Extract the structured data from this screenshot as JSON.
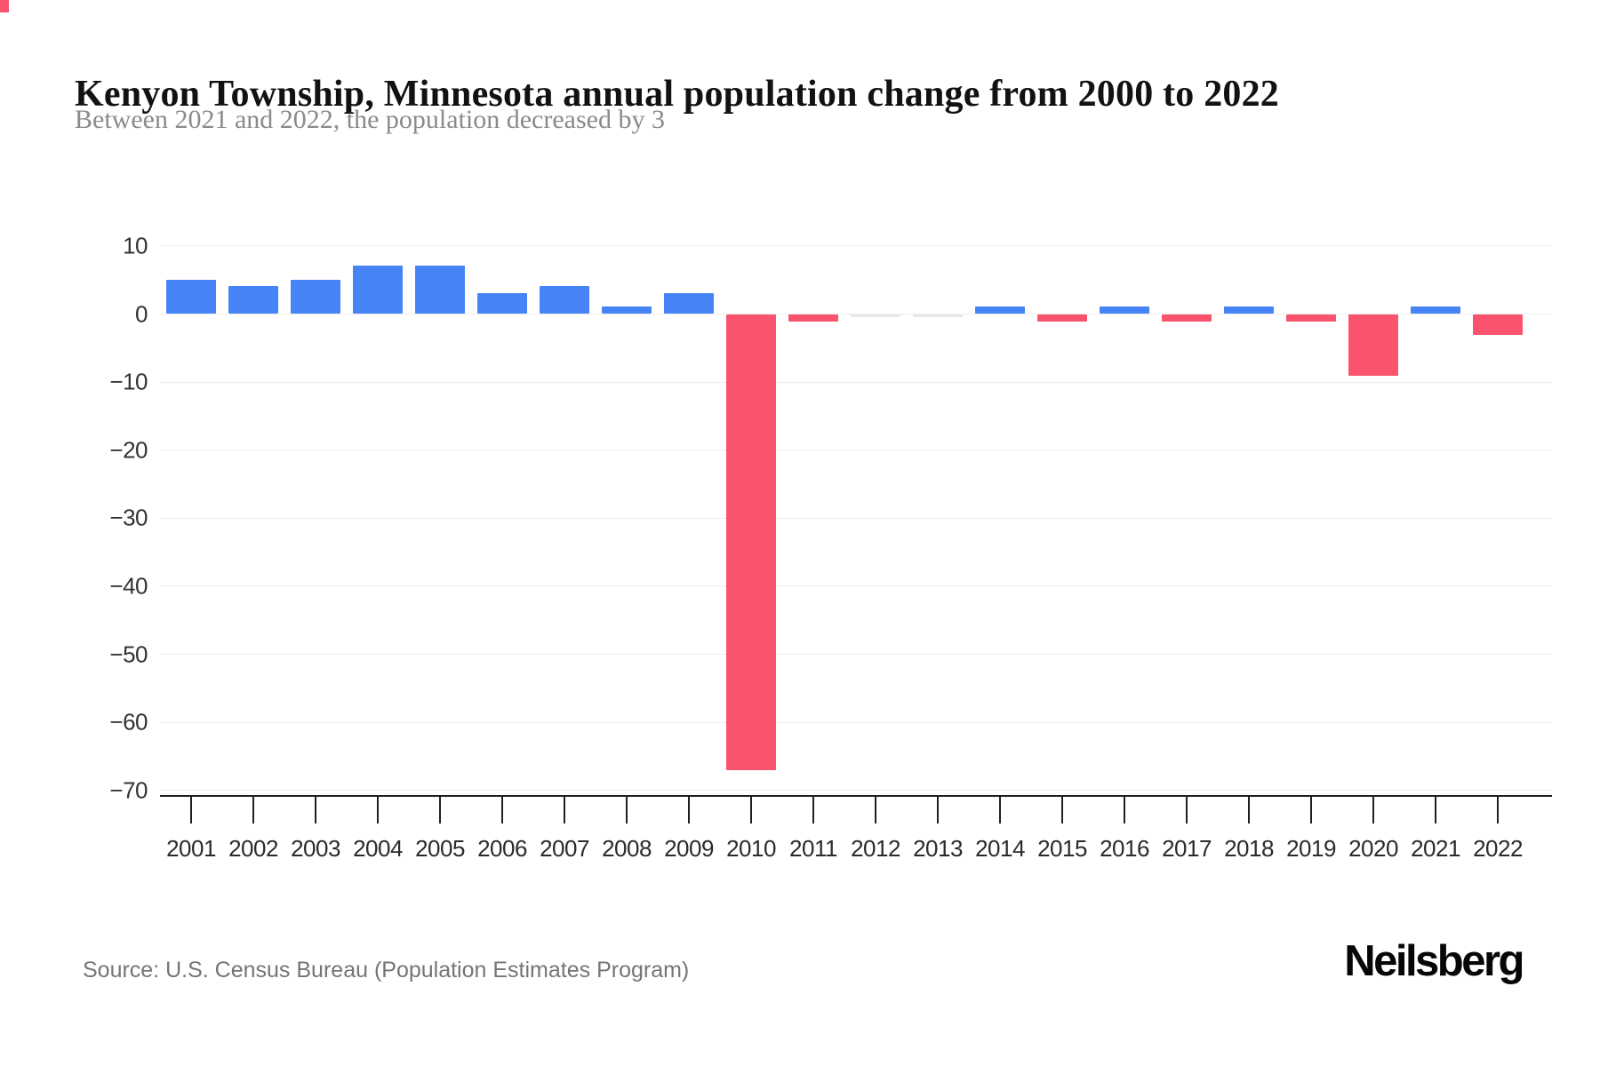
{
  "page": {
    "title": "Kenyon Township, Minnesota annual population change from 2000 to 2022",
    "subtitle": "Between 2021 and 2022, the population decreased by 3",
    "source": "Source: U.S. Census Bureau (Population Estimates Program)",
    "brand": "Neilsberg"
  },
  "colors": {
    "positive_bar": "#4683f4",
    "negative_bar": "#f9536d",
    "zero_bar": "#e8e8e8",
    "gridline": "#ededed",
    "axis": "#1f1f1f",
    "title_text": "#121212",
    "subtitle_text": "#8a8a8a",
    "tick_label": "#2b2b2b",
    "source_text": "#757575"
  },
  "chart_data": {
    "type": "bar",
    "title": "Kenyon Township, Minnesota annual population change from 2000 to 2022",
    "subtitle": "Between 2021 and 2022, the population decreased by 3",
    "xlabel": "",
    "ylabel": "",
    "categories": [
      "2001",
      "2002",
      "2003",
      "2004",
      "2005",
      "2006",
      "2007",
      "2008",
      "2009",
      "2010",
      "2011",
      "2012",
      "2013",
      "2014",
      "2015",
      "2016",
      "2017",
      "2018",
      "2019",
      "2020",
      "2021",
      "2022"
    ],
    "values": [
      5,
      4,
      5,
      7,
      7,
      3,
      4,
      1,
      3,
      -67,
      -1,
      0,
      0,
      1,
      -1,
      1,
      -1,
      1,
      -1,
      -9,
      1,
      -3
    ],
    "ylim": [
      -70,
      10
    ],
    "ytick_labels": [
      "10",
      "0",
      "−10",
      "−20",
      "−30",
      "−40",
      "−50",
      "−60",
      "−70"
    ],
    "ytick_values": [
      10,
      0,
      -10,
      -20,
      -30,
      -40,
      -50,
      -60,
      -70
    ],
    "grid": "horizontal",
    "legend": "none",
    "positive_color": "#4683f4",
    "negative_color": "#f9536d",
    "zero_color": "#e8e8e8"
  }
}
